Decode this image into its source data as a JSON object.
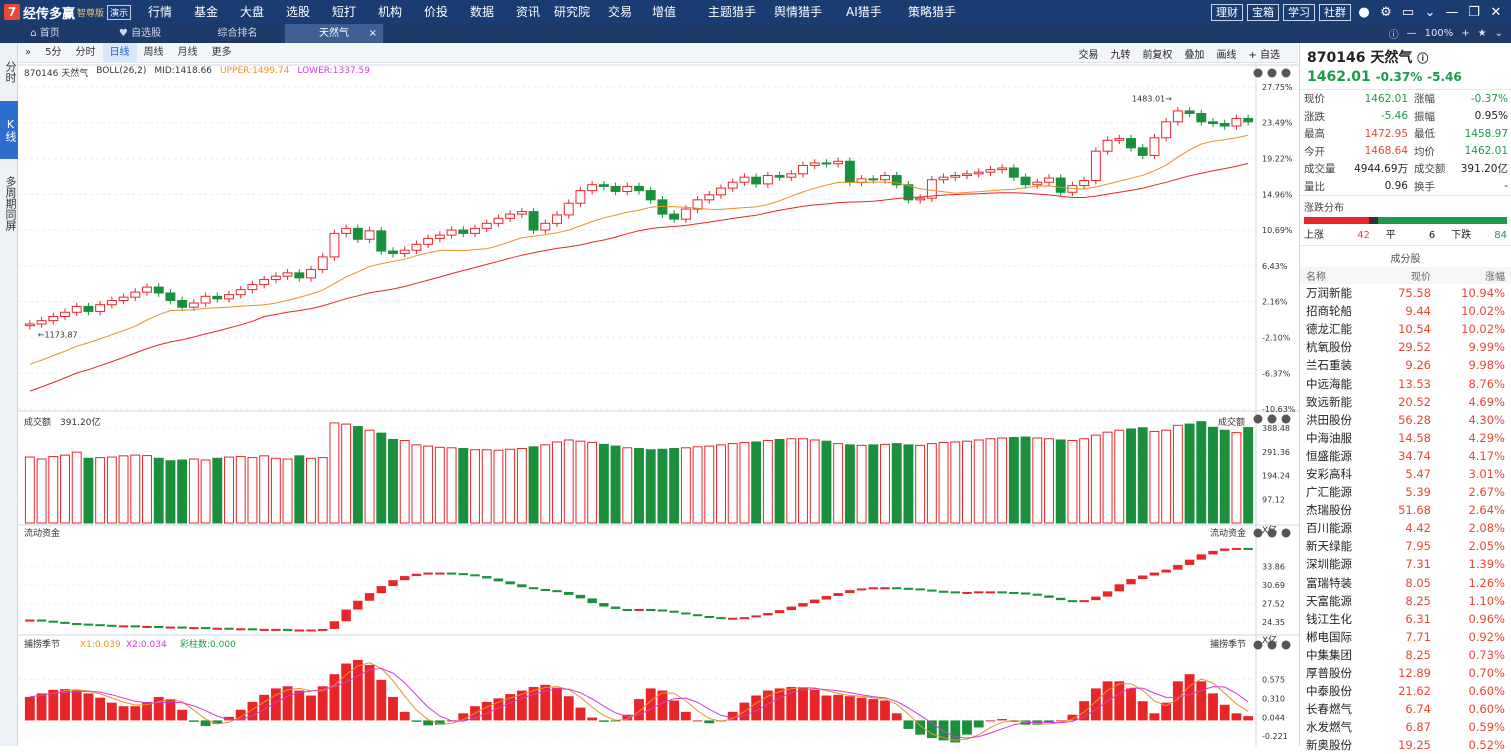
{
  "app": {
    "logo_mark": "7",
    "name": "经传多赢",
    "edition": "智尊版",
    "demo": "演示"
  },
  "menu": [
    {
      "label": "行情",
      "w": 46
    },
    {
      "label": "基金",
      "w": 46
    },
    {
      "label": "大盘",
      "w": 46
    },
    {
      "label": "选股",
      "w": 46
    },
    {
      "label": "短打",
      "w": 46
    },
    {
      "label": "机构",
      "w": 46
    },
    {
      "label": "价投",
      "w": 46
    },
    {
      "label": "数据",
      "w": 46
    },
    {
      "label": "资讯",
      "w": 38
    },
    {
      "label": "研究院",
      "w": 54
    },
    {
      "label": "交易",
      "w": 44
    },
    {
      "label": "增值",
      "w": 56
    },
    {
      "label": "主题猎手",
      "w": 66
    },
    {
      "label": "舆情猎手",
      "w": 72
    },
    {
      "label": "AI猎手",
      "w": 62
    },
    {
      "label": "策略猎手",
      "w": 50,
      "dot": true
    }
  ],
  "top_right": {
    "buttons": [
      "理财",
      "宝箱",
      "学习",
      "社群"
    ]
  },
  "tabs": [
    {
      "label": "首页",
      "w": 90,
      "icon": "home-icon"
    },
    {
      "label": "自选股",
      "w": 100,
      "icon": "heart-icon"
    },
    {
      "label": "综合排名",
      "w": 95
    },
    {
      "label": "天然气",
      "w": 98,
      "active": true
    }
  ],
  "tab_right": {
    "zoom": "100%"
  },
  "left_nav": [
    {
      "label": "分时",
      "h": 58
    },
    {
      "label": "K线",
      "h": 58,
      "active": true
    },
    {
      "label": "多周期同屏",
      "h": 88
    }
  ],
  "toolbar": {
    "periods": [
      "5分",
      "分时",
      "日线",
      "周线",
      "月线",
      "更多"
    ],
    "active_index": 2,
    "right": [
      "交易",
      "九转",
      "前复权",
      "叠加",
      "画线",
      "+ 自选"
    ]
  },
  "indicator": {
    "code_name": "870146 天然气",
    "boll": "BOLL(26,2)",
    "mid": "MID:1418.66",
    "upper": "UPPER:1499.74",
    "lower": "LOWER:1337.59"
  },
  "volume_panel": {
    "title": "成交额",
    "value": "391.20亿",
    "right_title": "成交额",
    "unit": "X亿"
  },
  "fund_panel": {
    "title": "流动资金",
    "right_title": "流动资金",
    "unit": "X亿"
  },
  "season_panel": {
    "title": "捕捞季节",
    "x1": "X1:0.039",
    "x2": "X2:0.034",
    "bars": "彩柱数:0.000",
    "right_title": "捕捞季节"
  },
  "quote": {
    "code": "870146",
    "name": "天然气",
    "price": "1462.01",
    "change_pct": "-0.37%",
    "change": "-5.46",
    "rows": [
      {
        "l": "现价",
        "v": "1462.01",
        "vc": "green",
        "l2": "涨幅",
        "v2": "-0.37%",
        "v2c": "green"
      },
      {
        "l": "涨跌",
        "v": "-5.46",
        "vc": "green",
        "l2": "振幅",
        "v2": "0.95%",
        "v2c": "blk"
      },
      {
        "l": "最高",
        "v": "1472.95",
        "vc": "red",
        "l2": "最低",
        "v2": "1458.97",
        "v2c": "green"
      },
      {
        "l": "今开",
        "v": "1468.64",
        "vc": "red",
        "l2": "均价",
        "v2": "1462.01",
        "v2c": "green"
      },
      {
        "l": "成交量",
        "v": "4944.69万",
        "vc": "blk",
        "l2": "成交额",
        "v2": "391.20亿",
        "v2c": "blk"
      },
      {
        "l": "量比",
        "v": "0.96",
        "vc": "blk",
        "l2": "换手",
        "v2": "-",
        "v2c": "blk"
      }
    ]
  },
  "distribution": {
    "title": "涨跌分布",
    "up_label": "上涨",
    "up": "42",
    "flat_label": "平",
    "flat": "6",
    "down_label": "下跌",
    "down": "84"
  },
  "components": {
    "title": "成分股",
    "headers": [
      "名称",
      "现价",
      "涨幅"
    ],
    "items": [
      {
        "name": "万润新能",
        "price": "75.58",
        "pct": "10.94%"
      },
      {
        "name": "招商轮船",
        "price": "9.44",
        "pct": "10.02%"
      },
      {
        "name": "德龙汇能",
        "price": "10.54",
        "pct": "10.02%"
      },
      {
        "name": "杭氧股份",
        "price": "29.52",
        "pct": "9.99%"
      },
      {
        "name": "兰石重装",
        "price": "9.26",
        "pct": "9.98%"
      },
      {
        "name": "中远海能",
        "price": "13.53",
        "pct": "8.76%"
      },
      {
        "name": "致远新能",
        "price": "20.52",
        "pct": "4.69%"
      },
      {
        "name": "洪田股份",
        "price": "56.28",
        "pct": "4.30%"
      },
      {
        "name": "中海油服",
        "price": "14.58",
        "pct": "4.29%"
      },
      {
        "name": "恒盛能源",
        "price": "34.74",
        "pct": "4.17%"
      },
      {
        "name": "安彩高科",
        "price": "5.47",
        "pct": "3.01%"
      },
      {
        "name": "广汇能源",
        "price": "5.39",
        "pct": "2.67%"
      },
      {
        "name": "杰瑞股份",
        "price": "51.68",
        "pct": "2.64%"
      },
      {
        "name": "百川能源",
        "price": "4.42",
        "pct": "2.08%"
      },
      {
        "name": "新天绿能",
        "price": "7.95",
        "pct": "2.05%"
      },
      {
        "name": "深圳能源",
        "price": "7.31",
        "pct": "1.39%"
      },
      {
        "name": "富瑞特装",
        "price": "8.05",
        "pct": "1.26%"
      },
      {
        "name": "天富能源",
        "price": "8.25",
        "pct": "1.10%"
      },
      {
        "name": "钱江生化",
        "price": "6.31",
        "pct": "0.96%"
      },
      {
        "name": "郴电国际",
        "price": "7.71",
        "pct": "0.92%"
      },
      {
        "name": "中集集团",
        "price": "8.25",
        "pct": "0.73%"
      },
      {
        "name": "厚普股份",
        "price": "12.89",
        "pct": "0.70%"
      },
      {
        "name": "中泰股份",
        "price": "21.62",
        "pct": "0.60%"
      },
      {
        "name": "长春燃气",
        "price": "6.74",
        "pct": "0.60%"
      },
      {
        "name": "水发燃气",
        "price": "6.87",
        "pct": "0.59%"
      },
      {
        "name": "新奥股份",
        "price": "19.25",
        "pct": "0.52%"
      }
    ]
  },
  "chart_data": {
    "type": "candlestick",
    "price_axis_pct": [
      "27.75%",
      "23.49%",
      "19.22%",
      "14.96%",
      "10.69%",
      "6.43%",
      "2.16%",
      "-2.10%",
      "-6.37%",
      "-10.63%"
    ],
    "price_range_pct": [
      -10.63,
      27.75
    ],
    "high_label": "1483.01",
    "low_label": "1173.87",
    "candles_close_pct": [
      -0.5,
      -0.1,
      0.4,
      0.9,
      1.6,
      1.0,
      1.8,
      2.3,
      2.7,
      3.3,
      3.9,
      3.2,
      2.3,
      1.5,
      2.0,
      2.8,
      2.5,
      3.0,
      3.6,
      4.2,
      4.8,
      5.2,
      5.6,
      5.0,
      6.0,
      7.5,
      10.3,
      10.9,
      9.6,
      10.6,
      8.2,
      7.9,
      8.3,
      9.0,
      9.7,
      10.1,
      10.7,
      10.3,
      10.9,
      11.5,
      12.1,
      12.6,
      12.9,
      10.7,
      11.5,
      12.5,
      13.9,
      15.4,
      16.1,
      15.9,
      15.3,
      15.9,
      15.4,
      14.3,
      12.6,
      12.0,
      13.2,
      14.3,
      14.9,
      15.7,
      16.4,
      17.0,
      16.2,
      17.2,
      17.0,
      17.4,
      18.4,
      18.7,
      18.6,
      18.9,
      16.4,
      16.8,
      16.7,
      17.2,
      16.1,
      14.3,
      14.5,
      16.7,
      17.0,
      17.2,
      17.4,
      17.6,
      17.9,
      18.1,
      17.0,
      16.1,
      16.4,
      16.9,
      15.2,
      16.0,
      16.6,
      20.1,
      21.4,
      21.6,
      20.5,
      19.6,
      21.7,
      23.6,
      24.9,
      24.6,
      23.6,
      23.4,
      23.1,
      24.0,
      23.6
    ],
    "volume_axis": [
      "388.48",
      "291.36",
      "194.24",
      "97.12"
    ],
    "volume": [
      270,
      262,
      272,
      278,
      290,
      265,
      268,
      270,
      275,
      278,
      276,
      265,
      255,
      258,
      262,
      258,
      265,
      270,
      272,
      268,
      275,
      265,
      262,
      275,
      265,
      268,
      410,
      405,
      395,
      380,
      368,
      342,
      338,
      320,
      315,
      310,
      308,
      305,
      300,
      300,
      298,
      302,
      305,
      312,
      320,
      332,
      340,
      335,
      330,
      322,
      315,
      308,
      305,
      300,
      302,
      305,
      308,
      312,
      315,
      320,
      325,
      330,
      332,
      338,
      342,
      345,
      345,
      340,
      335,
      325,
      320,
      318,
      320,
      322,
      325,
      320,
      318,
      325,
      330,
      332,
      335,
      340,
      345,
      348,
      350,
      352,
      348,
      345,
      340,
      338,
      345,
      360,
      372,
      380,
      385,
      390,
      375,
      380,
      400,
      405,
      415,
      392,
      380,
      370,
      391
    ],
    "fund_axis": [
      "33.86",
      "30.69",
      "27.52",
      "24.35"
    ],
    "fund": [
      24.8,
      24.6,
      24.4,
      24.2,
      24.1,
      24.0,
      23.9,
      23.8,
      23.8,
      23.7,
      23.7,
      23.6,
      23.6,
      23.5,
      23.5,
      23.4,
      23.4,
      23.3,
      23.3,
      23.2,
      23.2,
      23.2,
      23.1,
      23.1,
      23.1,
      23.2,
      24.5,
      26.5,
      28.0,
      29.3,
      30.5,
      31.5,
      32.2,
      32.6,
      32.8,
      32.8,
      32.7,
      32.5,
      32.2,
      31.8,
      31.3,
      30.8,
      30.3,
      30.0,
      29.8,
      29.5,
      29.0,
      28.4,
      27.6,
      27.0,
      26.6,
      26.5,
      26.6,
      26.5,
      26.3,
      26.0,
      25.7,
      25.4,
      25.2,
      25.1,
      25.1,
      25.2,
      25.5,
      25.9,
      26.4,
      27.0,
      27.6,
      28.2,
      28.8,
      29.3,
      29.8,
      30.1,
      30.3,
      30.3,
      30.2,
      30.1,
      29.9,
      29.7,
      29.6,
      29.5,
      29.5,
      29.6,
      29.6,
      29.5,
      29.4,
      29.2,
      28.9,
      28.5,
      28.1,
      27.9,
      28.1,
      28.7,
      29.6,
      30.8,
      31.7,
      32.3,
      32.8,
      33.3,
      34.1,
      35.0,
      35.9,
      36.5,
      36.9,
      37.0,
      36.9
    ],
    "season_axis": [
      "0.575",
      "0.310",
      "0.044",
      "-0.221"
    ],
    "season": [
      0.33,
      0.38,
      0.43,
      0.44,
      0.42,
      0.38,
      0.32,
      0.25,
      0.2,
      0.2,
      0.26,
      0.33,
      0.3,
      0.15,
      -0.02,
      -0.08,
      -0.05,
      0.05,
      0.15,
      0.26,
      0.36,
      0.45,
      0.48,
      0.42,
      0.35,
      0.48,
      0.65,
      0.8,
      0.85,
      0.78,
      0.57,
      0.33,
      0.12,
      -0.02,
      -0.07,
      -0.06,
      0.0,
      0.1,
      0.2,
      0.26,
      0.31,
      0.37,
      0.42,
      0.47,
      0.5,
      0.46,
      0.34,
      0.18,
      0.04,
      -0.02,
      -0.01,
      0.08,
      0.3,
      0.45,
      0.42,
      0.28,
      0.12,
      0.0,
      -0.04,
      0.0,
      0.12,
      0.25,
      0.35,
      0.42,
      0.45,
      0.47,
      0.47,
      0.43,
      0.35,
      0.36,
      0.34,
      0.32,
      0.3,
      0.28,
      0.1,
      -0.12,
      -0.2,
      -0.25,
      -0.28,
      -0.31,
      -0.2,
      -0.1,
      0.0,
      0.02,
      -0.02,
      -0.06,
      -0.06,
      -0.03,
      0.0,
      0.08,
      0.27,
      0.45,
      0.55,
      0.55,
      0.45,
      0.27,
      0.1,
      0.25,
      0.55,
      0.65,
      0.55,
      0.38,
      0.22,
      0.1,
      0.06
    ]
  }
}
